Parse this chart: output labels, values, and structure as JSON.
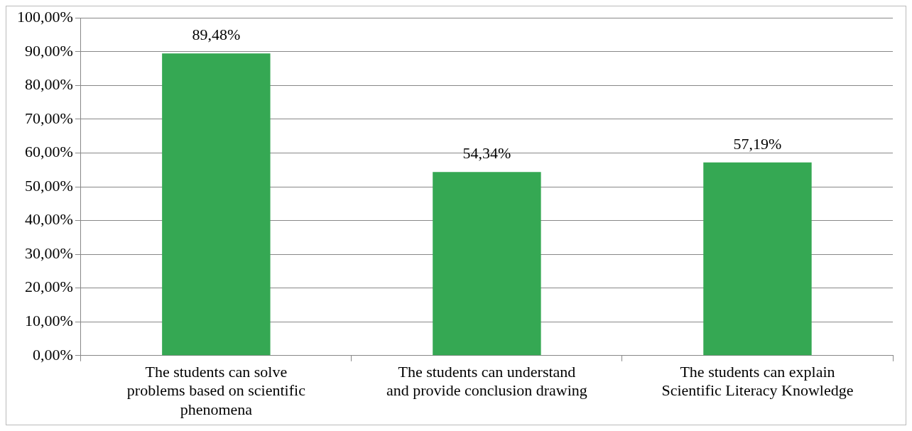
{
  "chart_data": {
    "type": "bar",
    "categories": [
      "The students can solve problems based on scientific phenomena",
      "The students can understand and provide conclusion drawing",
      "The students can explain Scientific Literacy Knowledge"
    ],
    "values": [
      89.48,
      54.34,
      57.19
    ],
    "value_labels": [
      "89,48%",
      "54,34%",
      "57,19%"
    ],
    "color": "#35a853",
    "ylim": [
      0,
      100
    ],
    "yticks": [
      {
        "value": 0,
        "label": "0,00%"
      },
      {
        "value": 10,
        "label": "10,00%"
      },
      {
        "value": 20,
        "label": "20,00%"
      },
      {
        "value": 30,
        "label": "30,00%"
      },
      {
        "value": 40,
        "label": "40,00%"
      },
      {
        "value": 50,
        "label": "50,00%"
      },
      {
        "value": 60,
        "label": "60,00%"
      },
      {
        "value": 70,
        "label": "70,00%"
      },
      {
        "value": 80,
        "label": "80,00%"
      },
      {
        "value": 90,
        "label": "90,00%"
      },
      {
        "value": 100,
        "label": "100,00%"
      }
    ],
    "grid": "y"
  }
}
